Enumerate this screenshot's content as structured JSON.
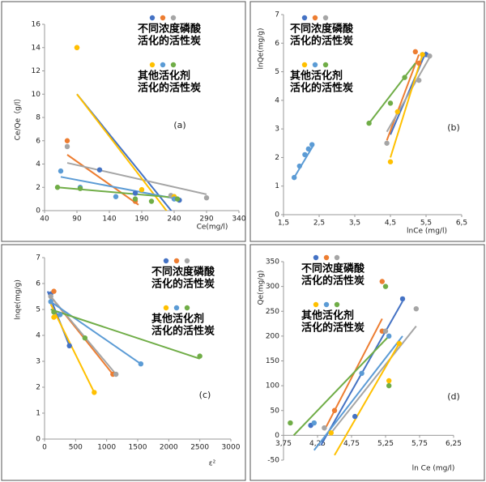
{
  "chart_data": [
    {
      "type": "scatter",
      "panel": "(a)",
      "x_label": "Ce(mg/l)",
      "y_label": "Ce/Qe（g/l）",
      "xlim": [
        40,
        340
      ],
      "xticks": [
        40,
        90,
        140,
        190,
        240,
        290,
        340
      ],
      "ylim": [
        0,
        16
      ],
      "yticks": [
        0,
        2,
        4,
        6,
        8,
        10,
        12,
        14,
        16
      ],
      "series": [
        {
          "color": "#4472c4",
          "x": [
            125,
            180,
            240,
            248
          ],
          "values": [
            3.5,
            1.5,
            1.2,
            0.9
          ],
          "fit_x": [
            90,
            250
          ],
          "fit_y": [
            10,
            -1
          ]
        },
        {
          "color": "#ed7d31",
          "x": [
            75,
            90,
            180
          ],
          "values": [
            6,
            14,
            0.8
          ],
          "fit_x": [
            75,
            185
          ],
          "fit_y": [
            4.8,
            0.5
          ]
        },
        {
          "color": "#a5a5a5",
          "x": [
            75,
            235,
            290
          ],
          "values": [
            5.5,
            1.3,
            1.1
          ],
          "fit_x": [
            75,
            290
          ],
          "fit_y": [
            4.1,
            1.4
          ]
        },
        {
          "color": "#ffc000",
          "x": [
            90,
            190,
            240
          ],
          "values": [
            14,
            1.8,
            1.2
          ],
          "fit_x": [
            90,
            235
          ],
          "fit_y": [
            10,
            -0.5
          ]
        },
        {
          "color": "#5b9bd5",
          "x": [
            65,
            95,
            150,
            240
          ],
          "values": [
            3.4,
            2,
            1.2,
            1
          ],
          "fit_x": [
            65,
            245
          ],
          "fit_y": [
            2.9,
            1
          ]
        },
        {
          "color": "#70ad47",
          "x": [
            60,
            95,
            180,
            205,
            245
          ],
          "values": [
            2,
            1.9,
            1,
            0.8,
            1
          ],
          "fit_x": [
            60,
            245
          ],
          "fit_y": [
            2,
            1.1
          ]
        }
      ],
      "legend_groups": [
        {
          "series": [
            0,
            1,
            2
          ],
          "lines": [
            "不同浓度磷酸",
            "活化的活性炭"
          ]
        },
        {
          "series": [
            3,
            4,
            5
          ],
          "lines": [
            "其他活化剂",
            "活化的活性炭"
          ]
        }
      ]
    },
    {
      "type": "scatter",
      "panel": "(b)",
      "x_label": "lnCe (mg/l)",
      "y_label": "lnQe(mg/g)",
      "xlim": [
        1.5,
        6.5
      ],
      "xticks": [
        {
          "value": 1.5,
          "label": "1,5"
        },
        {
          "value": 2.5,
          "label": "2,5"
        },
        {
          "value": 3.5,
          "label": "3,5"
        },
        {
          "value": 4.5,
          "label": "4,5"
        },
        {
          "value": 5.5,
          "label": "5,5"
        },
        {
          "value": 6.5,
          "label": "6,5"
        }
      ],
      "ylim": [
        0,
        7
      ],
      "yticks": [
        0,
        1,
        2,
        3,
        4,
        5,
        6,
        7
      ],
      "series": [
        {
          "color": "#4472c4",
          "x": [
            5.4,
            5.5
          ],
          "values": [
            5.6,
            5.6
          ],
          "fit_x": [
            4.5,
            5.5
          ],
          "fit_y": [
            2.8,
            5.7
          ]
        },
        {
          "color": "#ed7d31",
          "x": [
            5.2,
            5.3
          ],
          "values": [
            5.7,
            5.3
          ],
          "fit_x": [
            4.4,
            5.3
          ],
          "fit_y": [
            2.6,
            5.6
          ]
        },
        {
          "color": "#a5a5a5",
          "x": [
            4.4,
            5.3,
            5.6
          ],
          "values": [
            2.5,
            4.7,
            5.55
          ],
          "fit_x": [
            4.4,
            5.6
          ],
          "fit_y": [
            2.9,
            5.5
          ]
        },
        {
          "color": "#ffc000",
          "x": [
            4.5,
            4.7,
            5.4
          ],
          "values": [
            1.85,
            3.6,
            5.6
          ],
          "fit_x": [
            4.5,
            5.4
          ],
          "fit_y": [
            2,
            5.6
          ]
        },
        {
          "color": "#5b9bd5",
          "x": [
            1.8,
            1.95,
            2.1,
            2.2,
            2.3
          ],
          "values": [
            1.3,
            1.7,
            2.1,
            2.3,
            2.45
          ],
          "fit_x": [
            1.8,
            2.35
          ],
          "fit_y": [
            1.3,
            2.45
          ]
        },
        {
          "color": "#70ad47",
          "x": [
            3.9,
            4.5,
            4.9
          ],
          "values": [
            3.2,
            3.9,
            4.8
          ],
          "fit_x": [
            3.9,
            5.2
          ],
          "fit_y": [
            3.2,
            5.3
          ]
        }
      ],
      "legend_groups": [
        {
          "series": [
            0,
            1,
            2
          ],
          "lines": [
            "不同浓度磷酸",
            "活化的活性炭"
          ]
        },
        {
          "series": [
            3,
            4,
            5
          ],
          "lines": [
            "其他活化剂",
            "活化的活性炭"
          ]
        }
      ]
    },
    {
      "type": "scatter",
      "panel": "(c)",
      "x_label": "ε²",
      "y_label": "lnqe(mg/g)",
      "xlim": [
        0,
        3000
      ],
      "xticks": [
        0,
        500,
        1000,
        1500,
        2000,
        2500,
        3000
      ],
      "ylim": [
        0,
        7
      ],
      "yticks": [
        0,
        1,
        2,
        3,
        4,
        5,
        6,
        7
      ],
      "series": [
        {
          "color": "#4472c4",
          "x": [
            100,
            400
          ],
          "values": [
            5.6,
            3.6
          ],
          "fit_x": [
            50,
            400
          ],
          "fit_y": [
            5.7,
            3.6
          ]
        },
        {
          "color": "#ed7d31",
          "x": [
            150,
            1100
          ],
          "values": [
            5.7,
            2.5
          ],
          "fit_x": [
            100,
            1100
          ],
          "fit_y": [
            5.5,
            2.5
          ]
        },
        {
          "color": "#a5a5a5",
          "x": [
            100,
            1150
          ],
          "values": [
            5.5,
            2.5
          ],
          "fit_x": [
            100,
            1150
          ],
          "fit_y": [
            5.5,
            2.5
          ]
        },
        {
          "color": "#ffc000",
          "x": [
            150,
            800
          ],
          "values": [
            4.7,
            1.8
          ],
          "fit_x": [
            100,
            800
          ],
          "fit_y": [
            5.2,
            1.8
          ]
        },
        {
          "color": "#5b9bd5",
          "x": [
            100,
            250,
            1550
          ],
          "values": [
            5.3,
            4.8,
            2.9
          ],
          "fit_x": [
            100,
            1550
          ],
          "fit_y": [
            5.3,
            2.9
          ]
        },
        {
          "color": "#70ad47",
          "x": [
            150,
            650,
            2500
          ],
          "values": [
            4.9,
            3.9,
            3.2
          ],
          "fit_x": [
            100,
            2500
          ],
          "fit_y": [
            5,
            3.1
          ]
        }
      ],
      "legend_groups": [
        {
          "series": [
            0,
            1,
            2
          ],
          "lines": [
            "不同浓度磷酸",
            "活化的活性炭"
          ]
        },
        {
          "series": [
            3,
            4,
            5
          ],
          "lines": [
            "其他活化剂",
            "活化的活性炭"
          ]
        }
      ]
    },
    {
      "type": "scatter",
      "panel": "(d)",
      "x_label": "ln Ce (mg/l)",
      "y_label": "Qe(mg/g)",
      "xlim": [
        3.75,
        6.25
      ],
      "xticks": [
        {
          "value": 3.75,
          "label": "3,75"
        },
        {
          "value": 4.25,
          "label": "4,25"
        },
        {
          "value": 4.75,
          "label": "4,75"
        },
        {
          "value": 5.25,
          "label": "5,25"
        },
        {
          "value": 5.75,
          "label": "5,75"
        },
        {
          "value": 6.25,
          "label": "6,25"
        }
      ],
      "ylim": [
        -50,
        350
      ],
      "yticks": [
        -50,
        0,
        50,
        100,
        150,
        200,
        250,
        300,
        350
      ],
      "series": [
        {
          "color": "#4472c4",
          "x": [
            4.15,
            4.8,
            5.5
          ],
          "values": [
            20,
            38,
            275
          ],
          "fit_x": [
            4.3,
            5.5
          ],
          "fit_y": [
            -20,
            270
          ]
        },
        {
          "color": "#ed7d31",
          "x": [
            4.5,
            5.2,
            5.2
          ],
          "values": [
            50,
            310,
            210
          ],
          "fit_x": [
            4.35,
            5.2
          ],
          "fit_y": [
            10,
            235
          ]
        },
        {
          "color": "#a5a5a5",
          "x": [
            4.35,
            5.25,
            5.7
          ],
          "values": [
            15,
            210,
            255
          ],
          "fit_x": [
            4.45,
            5.7
          ],
          "fit_y": [
            5,
            220
          ]
        },
        {
          "color": "#ffc000",
          "x": [
            4.45,
            5.3,
            5.45
          ],
          "values": [
            5,
            110,
            185
          ],
          "fit_x": [
            4.5,
            5.45
          ],
          "fit_y": [
            -40,
            185
          ]
        },
        {
          "color": "#5b9bd5",
          "x": [
            4.2,
            4.9,
            5.3
          ],
          "values": [
            25,
            125,
            200
          ],
          "fit_x": [
            4.2,
            5.5
          ],
          "fit_y": [
            -30,
            200
          ]
        },
        {
          "color": "#70ad47",
          "x": [
            3.85,
            5.25,
            5.3
          ],
          "values": [
            25,
            300,
            100
          ],
          "fit_x": [
            3.9,
            5.3
          ],
          "fit_y": [
            0,
            200
          ]
        }
      ],
      "legend_groups": [
        {
          "series": [
            0,
            1,
            2
          ],
          "lines": [
            "不同浓度磷酸",
            "活化的活性炭"
          ]
        },
        {
          "series": [
            3,
            4,
            5
          ],
          "lines": [
            "其他活化剂",
            "活化的活性炭"
          ]
        }
      ]
    }
  ]
}
